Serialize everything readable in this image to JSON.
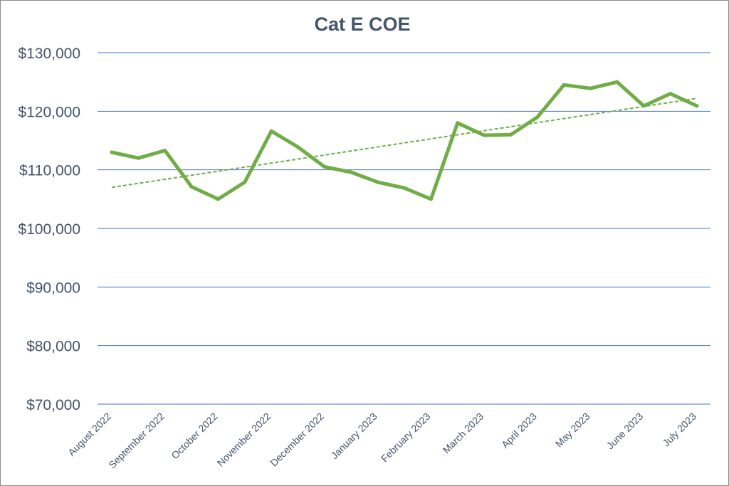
{
  "chart_data": {
    "type": "line",
    "title": "Cat E COE",
    "xlabel": "",
    "ylabel": "",
    "ylim": [
      70000,
      130000
    ],
    "yticks": [
      130000,
      120000,
      110000,
      100000,
      90000,
      80000,
      70000
    ],
    "ytick_labels": [
      "$130,000",
      "$120,000",
      "$110,000",
      "$100,000",
      "$90,000",
      "$80,000",
      "$70,000"
    ],
    "xtick_labels": [
      "August 2022",
      "September 2022",
      "October 2022",
      "November 2022",
      "December 2022",
      "January 2023",
      "February 2023",
      "March 2023",
      "April 2023",
      "May 2023",
      "June 2023",
      "July 2023"
    ],
    "grid": true,
    "legend": "none",
    "series": [
      {
        "values": [
          113000,
          112000,
          113300,
          107100,
          105000,
          107900,
          116600,
          113900,
          110500,
          109600,
          107900,
          106900,
          105000,
          118000,
          115900,
          116000,
          119000,
          124500,
          123900,
          125000,
          120900,
          123000,
          120900
        ],
        "color": "#70ad47"
      }
    ],
    "trendline": {
      "type": "linear",
      "start": 107000,
      "end": 122200,
      "color": "#70ad47",
      "style": "dashed"
    },
    "gridline_color": "#4472c4"
  }
}
